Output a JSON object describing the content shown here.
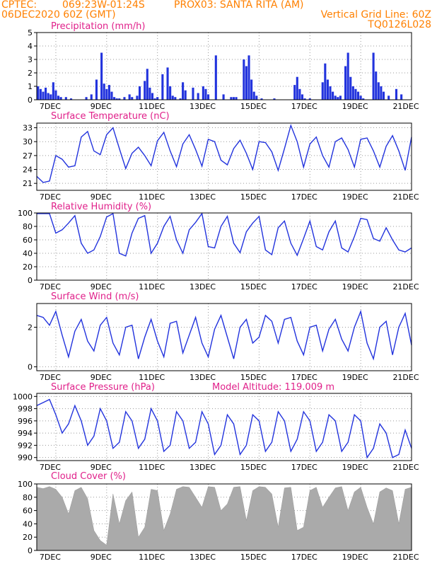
{
  "header": {
    "line1_left": "CPTEC:",
    "line1_coords": "069:23W-01:24S",
    "line1_point": "PROX03: SANTA RITA (AM)",
    "line2_left": "06DEC2020 60Z (GMT)",
    "line2_right": "Vertical Grid Line: 60Z",
    "line3_right": "TQ0126L028"
  },
  "colors": {
    "header": "#ff8000",
    "title": "#e0208a",
    "line": "#2233dd",
    "bar": "#2233dd",
    "cloud": "#aaaaaa",
    "grid": "#999999"
  },
  "x_axis": {
    "range_days": [
      6.25,
      21
    ],
    "tick_days": [
      7,
      9,
      11,
      13,
      15,
      17,
      19,
      21
    ],
    "tick_labels": [
      "7DEC",
      "9DEC",
      "11DEC",
      "13DEC",
      "15DEC",
      "17DEC",
      "19DEC",
      "21DEC"
    ]
  },
  "chart_data": [
    {
      "type": "bar",
      "title": "Precipitation (mm/h)",
      "ylim": [
        0,
        5
      ],
      "yticks": [
        0,
        1,
        2,
        3,
        4,
        5
      ],
      "x": [
        6.3,
        6.4,
        6.5,
        6.6,
        6.7,
        6.8,
        6.9,
        7.0,
        7.1,
        7.2,
        7.4,
        7.6,
        8.2,
        8.4,
        8.6,
        8.8,
        8.9,
        9.0,
        9.1,
        9.2,
        9.3,
        9.4,
        9.5,
        9.7,
        9.9,
        10.0,
        10.2,
        10.3,
        10.5,
        10.6,
        10.7,
        10.8,
        10.9,
        11.0,
        11.2,
        11.4,
        11.5,
        11.6,
        11.7,
        11.9,
        12.0,
        12.1,
        12.4,
        12.6,
        12.8,
        12.9,
        13.0,
        13.3,
        13.6,
        13.9,
        14.0,
        14.1,
        14.4,
        14.5,
        14.6,
        14.7,
        14.8,
        14.9,
        15.1,
        15.6,
        16.4,
        16.5,
        16.6,
        16.7,
        16.8,
        17.0,
        17.5,
        17.6,
        17.7,
        17.8,
        17.9,
        18.0,
        18.1,
        18.2,
        18.4,
        18.5,
        18.6,
        18.7,
        18.8,
        18.9,
        19.0,
        19.1,
        19.5,
        19.6,
        19.7,
        19.8,
        19.9,
        20.1,
        20.4,
        20.6
      ],
      "values": [
        1.0,
        0.8,
        0.6,
        0.9,
        0.5,
        0.4,
        1.3,
        0.7,
        0.3,
        0.2,
        0.2,
        0.1,
        0.2,
        0.4,
        1.5,
        3.5,
        1.2,
        0.8,
        1.1,
        0.6,
        0.2,
        0.1,
        0.1,
        0.2,
        0.4,
        0.2,
        0.3,
        1.0,
        1.4,
        2.3,
        0.9,
        0.5,
        0.1,
        0.2,
        1.9,
        2.4,
        1.0,
        0.3,
        0.2,
        0.1,
        1.3,
        0.7,
        0.9,
        0.5,
        1.0,
        0.8,
        0.4,
        3.3,
        0.4,
        0.2,
        0.2,
        0.2,
        3.0,
        2.5,
        3.3,
        1.5,
        0.6,
        0.3,
        0.1,
        0.1,
        1.1,
        1.7,
        0.8,
        0.4,
        0.1,
        0.1,
        1.3,
        2.7,
        1.5,
        1.0,
        0.6,
        0.3,
        0.2,
        0.3,
        2.5,
        3.5,
        1.7,
        1.0,
        0.8,
        0.6,
        0.3,
        0.1,
        3.5,
        2.1,
        1.3,
        1.0,
        0.6,
        0.3,
        0.8,
        0.4
      ]
    },
    {
      "type": "line",
      "title": "Surface Temperature (nC)",
      "ylim": [
        19.5,
        34
      ],
      "yticks": [
        21,
        24,
        27,
        30,
        33
      ],
      "x": [
        6.25,
        6.5,
        6.75,
        7.0,
        7.25,
        7.5,
        7.75,
        8.0,
        8.25,
        8.5,
        8.75,
        9.0,
        9.25,
        9.5,
        9.75,
        10.0,
        10.25,
        10.5,
        10.75,
        11.0,
        11.25,
        11.5,
        11.75,
        12.0,
        12.25,
        12.5,
        12.75,
        13.0,
        13.25,
        13.5,
        13.75,
        14.0,
        14.25,
        14.5,
        14.75,
        15.0,
        15.25,
        15.5,
        15.75,
        16.0,
        16.25,
        16.5,
        16.75,
        17.0,
        17.25,
        17.5,
        17.75,
        18.0,
        18.25,
        18.5,
        18.75,
        19.0,
        19.25,
        19.5,
        19.75,
        20.0,
        20.25,
        20.5,
        20.75,
        21.0
      ],
      "values": [
        22.5,
        21.2,
        21.5,
        27.0,
        26.2,
        24.5,
        24.8,
        31.0,
        32.2,
        28.0,
        27.2,
        31.5,
        33.0,
        28.5,
        24.2,
        27.5,
        28.8,
        27.0,
        24.8,
        30.2,
        32.0,
        28.0,
        24.6,
        29.5,
        31.5,
        28.3,
        24.7,
        30.5,
        30.0,
        26.0,
        25.0,
        28.5,
        30.3,
        27.5,
        24.0,
        30.0,
        29.8,
        27.8,
        23.8,
        28.5,
        33.5,
        30.0,
        24.5,
        29.5,
        31.0,
        27.0,
        24.5,
        30.0,
        30.8,
        28.3,
        24.5,
        30.5,
        30.8,
        28.0,
        24.5,
        29.0,
        31.3,
        28.0,
        23.8,
        31.0
      ]
    },
    {
      "type": "line",
      "title": "Relative Humidity (%)",
      "ylim": [
        0,
        100
      ],
      "yticks": [
        0,
        20,
        40,
        60,
        80,
        100
      ],
      "x": [
        6.25,
        6.5,
        6.75,
        7.0,
        7.25,
        7.5,
        7.75,
        8.0,
        8.25,
        8.5,
        8.75,
        9.0,
        9.25,
        9.5,
        9.75,
        10.0,
        10.25,
        10.5,
        10.75,
        11.0,
        11.25,
        11.5,
        11.75,
        12.0,
        12.25,
        12.5,
        12.75,
        13.0,
        13.25,
        13.5,
        13.75,
        14.0,
        14.25,
        14.5,
        14.75,
        15.0,
        15.25,
        15.5,
        15.75,
        16.0,
        16.25,
        16.5,
        16.75,
        17.0,
        17.25,
        17.5,
        17.75,
        18.0,
        18.25,
        18.5,
        18.75,
        19.0,
        19.25,
        19.5,
        19.75,
        20.0,
        20.25,
        20.5,
        20.75,
        21.0
      ],
      "values": [
        99,
        99,
        99,
        70,
        75,
        85,
        96,
        55,
        40,
        45,
        65,
        94,
        99,
        40,
        36,
        70,
        92,
        96,
        40,
        55,
        80,
        95,
        60,
        40,
        75,
        86,
        99,
        50,
        48,
        80,
        95,
        55,
        41,
        72,
        85,
        95,
        45,
        38,
        78,
        88,
        55,
        37,
        62,
        88,
        50,
        45,
        72,
        88,
        48,
        42,
        65,
        92,
        90,
        62,
        58,
        78,
        60,
        45,
        42,
        48
      ]
    },
    {
      "type": "line",
      "title": "Surface Wind (m/s)",
      "ylim": [
        -0.2,
        3.2
      ],
      "yticks": [
        0,
        2
      ],
      "x": [
        6.25,
        6.5,
        6.75,
        7.0,
        7.25,
        7.5,
        7.75,
        8.0,
        8.25,
        8.5,
        8.75,
        9.0,
        9.25,
        9.5,
        9.75,
        10.0,
        10.25,
        10.5,
        10.75,
        11.0,
        11.25,
        11.5,
        11.75,
        12.0,
        12.25,
        12.5,
        12.75,
        13.0,
        13.25,
        13.5,
        13.75,
        14.0,
        14.25,
        14.5,
        14.75,
        15.0,
        15.25,
        15.5,
        15.75,
        16.0,
        16.25,
        16.5,
        16.75,
        17.0,
        17.25,
        17.5,
        17.75,
        18.0,
        18.25,
        18.5,
        18.75,
        19.0,
        19.25,
        19.5,
        19.75,
        20.0,
        20.25,
        20.5,
        20.75,
        21.0
      ],
      "values": [
        2.6,
        2.5,
        2.1,
        2.8,
        1.6,
        0.5,
        1.8,
        2.4,
        1.3,
        0.8,
        2.1,
        2.5,
        1.2,
        0.6,
        2.0,
        2.1,
        0.4,
        1.5,
        2.4,
        1.3,
        0.5,
        2.2,
        2.3,
        0.7,
        1.6,
        2.5,
        1.2,
        0.5,
        1.9,
        2.6,
        1.5,
        0.4,
        2.0,
        2.4,
        1.2,
        1.5,
        2.6,
        2.3,
        1.2,
        2.4,
        2.5,
        1.3,
        0.6,
        2.0,
        2.1,
        0.8,
        1.9,
        2.4,
        1.4,
        0.8,
        2.0,
        2.8,
        1.2,
        0.4,
        2.0,
        2.3,
        0.6,
        2.0,
        2.7,
        1.1
      ]
    },
    {
      "type": "line",
      "title": "Surface Pressure (hPa)",
      "subtitle": "Model Altitude: 119.009 m",
      "ylim": [
        989.5,
        1000.5
      ],
      "yticks": [
        990,
        992,
        994,
        996,
        998,
        1000
      ],
      "x": [
        6.25,
        6.5,
        6.75,
        7.0,
        7.25,
        7.5,
        7.75,
        8.0,
        8.25,
        8.5,
        8.75,
        9.0,
        9.25,
        9.5,
        9.75,
        10.0,
        10.25,
        10.5,
        10.75,
        11.0,
        11.25,
        11.5,
        11.75,
        12.0,
        12.25,
        12.5,
        12.75,
        13.0,
        13.25,
        13.5,
        13.75,
        14.0,
        14.25,
        14.5,
        14.75,
        15.0,
        15.25,
        15.5,
        15.75,
        16.0,
        16.25,
        16.5,
        16.75,
        17.0,
        17.25,
        17.5,
        17.75,
        18.0,
        18.25,
        18.5,
        18.75,
        19.0,
        19.25,
        19.5,
        19.75,
        20.0,
        20.25,
        20.5,
        20.75,
        21.0
      ],
      "values": [
        998.5,
        999,
        999.5,
        997,
        994,
        995.5,
        998.5,
        996,
        992,
        993.5,
        998,
        996,
        991.5,
        992.5,
        997.5,
        996,
        991.5,
        993,
        998,
        996,
        991,
        992,
        997.5,
        996,
        991.5,
        992.5,
        997.5,
        995.5,
        990.5,
        992,
        997,
        995.5,
        990.5,
        992,
        997,
        996,
        991,
        992.5,
        997.5,
        996,
        991,
        993,
        997.5,
        996,
        991,
        992.5,
        997,
        996,
        991,
        992.5,
        997,
        996,
        990,
        991.5,
        995.5,
        994,
        990,
        990.5,
        994.5,
        991.5
      ]
    },
    {
      "type": "area",
      "title": "Cloud Cover (%)",
      "ylim": [
        0,
        100
      ],
      "yticks": [
        0,
        20,
        40,
        60,
        80,
        100
      ],
      "x": [
        6.25,
        6.5,
        6.75,
        7.0,
        7.25,
        7.5,
        7.75,
        8.0,
        8.25,
        8.5,
        8.75,
        9.0,
        9.25,
        9.5,
        9.75,
        10.0,
        10.25,
        10.5,
        10.75,
        11.0,
        11.25,
        11.5,
        11.75,
        12.0,
        12.25,
        12.5,
        12.75,
        13.0,
        13.25,
        13.5,
        13.75,
        14.0,
        14.25,
        14.5,
        14.75,
        15.0,
        15.25,
        15.5,
        15.75,
        16.0,
        16.25,
        16.5,
        16.75,
        17.0,
        17.25,
        17.5,
        17.75,
        18.0,
        18.25,
        18.5,
        18.75,
        19.0,
        19.25,
        19.5,
        19.75,
        20.0,
        20.25,
        20.5,
        20.75,
        21.0
      ],
      "values": [
        95,
        93,
        96,
        92,
        80,
        55,
        90,
        95,
        78,
        30,
        15,
        8,
        85,
        40,
        75,
        88,
        20,
        35,
        92,
        90,
        30,
        55,
        92,
        96,
        95,
        80,
        65,
        96,
        95,
        60,
        70,
        95,
        96,
        45,
        90,
        96,
        95,
        85,
        35,
        94,
        95,
        30,
        35,
        90,
        95,
        65,
        80,
        94,
        96,
        60,
        88,
        95,
        65,
        40,
        88,
        94,
        90,
        40,
        92,
        95
      ]
    }
  ]
}
